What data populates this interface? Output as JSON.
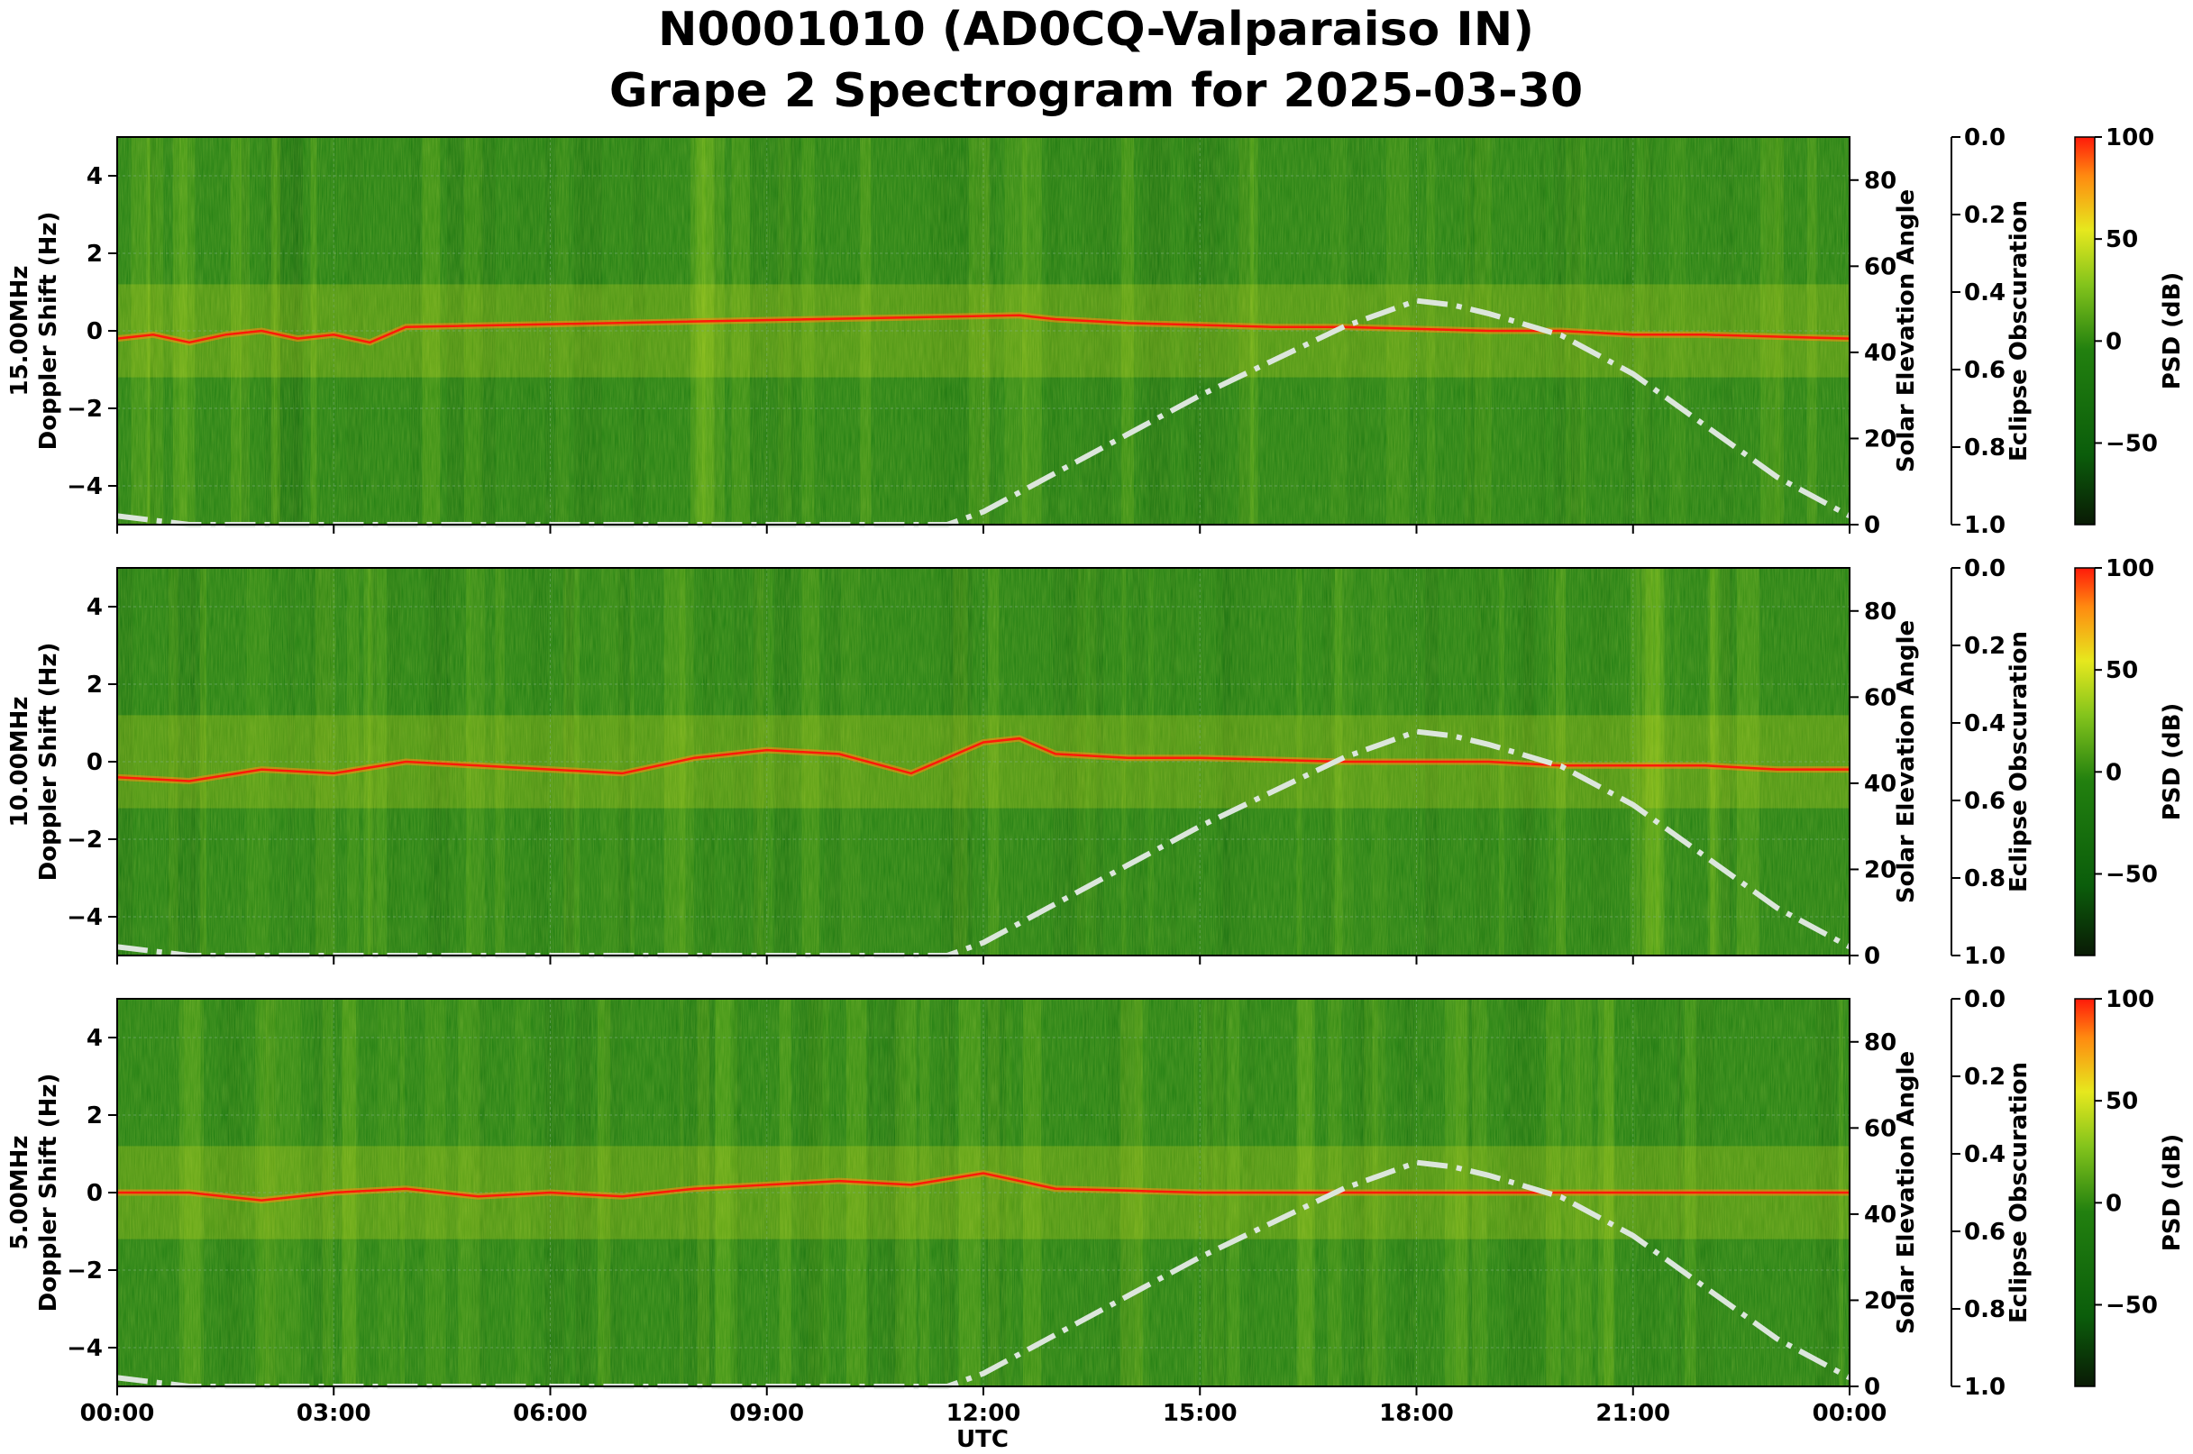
{
  "title_line1": "N0001010 (AD0CQ-Valparaiso IN)",
  "title_line2": "Grape 2 Spectrogram for 2025-03-30",
  "colors": {
    "colormap": [
      "#0a1a05",
      "#0b5d0b",
      "#22800f",
      "#84c41c",
      "#e6e81e",
      "#ff8a10",
      "#ff1a0a"
    ],
    "elevation_curve": "#dce6dc",
    "grid": "#7fb07f"
  },
  "chart_data": {
    "type": "heatmap",
    "shared": {
      "xlabel": "UTC",
      "x_ticks": [
        "00:00",
        "03:00",
        "06:00",
        "09:00",
        "12:00",
        "15:00",
        "18:00",
        "21:00",
        "00:00"
      ],
      "x_range_hours": [
        0,
        24
      ],
      "doppler_range_hz": [
        -5,
        5
      ],
      "doppler_ticks": [
        4,
        2,
        0,
        -2,
        -4
      ],
      "elevation_label": "Solar Elevation Angle",
      "elevation_range_deg": [
        0,
        90
      ],
      "elevation_ticks": [
        80,
        60,
        40,
        20,
        0
      ],
      "eclipse_label": "Eclipse Obscuration",
      "eclipse_ticks": [
        "0.0",
        "0.2",
        "0.4",
        "0.6",
        "0.8",
        "1.0"
      ],
      "colorbar_label": "PSD (dB)",
      "colorbar_ticks": [
        100,
        50,
        0,
        -50
      ],
      "colorbar_range_db": [
        -90,
        100
      ],
      "solar_elevation_curve": {
        "hours": [
          0,
          1,
          11.5,
          12,
          13,
          14,
          15,
          16,
          17,
          17.5,
          18,
          18.5,
          19,
          20,
          21,
          22,
          23,
          24
        ],
        "degrees": [
          2,
          0,
          0,
          3,
          12,
          21,
          30,
          38,
          46,
          49,
          52,
          51,
          49,
          44,
          35,
          23,
          11,
          2
        ]
      }
    },
    "panels": [
      {
        "ylabel_line1": "15.00MHz",
        "ylabel_line2": "Doppler Shift (Hz)",
        "carrier_trace": {
          "hours": [
            0,
            0.5,
            1,
            1.5,
            2,
            2.5,
            3,
            3.5,
            4,
            12.5,
            13,
            14,
            15,
            16,
            17,
            18,
            19,
            20,
            21,
            22,
            23,
            24
          ],
          "doppler_hz": [
            -0.2,
            -0.1,
            -0.3,
            -0.1,
            0,
            -0.2,
            -0.1,
            -0.3,
            0.1,
            0.4,
            0.3,
            0.2,
            0.15,
            0.1,
            0.1,
            0.05,
            0,
            0,
            -0.1,
            -0.1,
            -0.15,
            -0.2
          ]
        }
      },
      {
        "ylabel_line1": "10.00MHz",
        "ylabel_line2": "Doppler Shift (Hz)",
        "carrier_trace": {
          "hours": [
            0,
            1,
            2,
            3,
            4,
            5,
            6,
            7,
            8,
            9,
            10,
            11,
            12,
            12.5,
            13,
            14,
            15,
            16,
            17,
            18,
            19,
            20,
            21,
            22,
            23,
            24
          ],
          "doppler_hz": [
            -0.4,
            -0.5,
            -0.2,
            -0.3,
            0,
            -0.1,
            -0.2,
            -0.3,
            0.1,
            0.3,
            0.2,
            -0.3,
            0.5,
            0.6,
            0.2,
            0.1,
            0.1,
            0.05,
            0,
            0,
            0,
            -0.1,
            -0.1,
            -0.1,
            -0.2,
            -0.2
          ]
        }
      },
      {
        "ylabel_line1": "5.00MHz",
        "ylabel_line2": "Doppler Shift (Hz)",
        "carrier_trace": {
          "hours": [
            0,
            1,
            2,
            3,
            4,
            5,
            6,
            7,
            8,
            9,
            10,
            11,
            12,
            13,
            14,
            15,
            16,
            17,
            18,
            19,
            20,
            21,
            22,
            23,
            24
          ],
          "doppler_hz": [
            0,
            0,
            -0.2,
            0,
            0.1,
            -0.1,
            0,
            -0.1,
            0.1,
            0.2,
            0.3,
            0.2,
            0.5,
            0.1,
            0.05,
            0,
            0,
            0,
            0,
            0,
            0,
            0,
            0,
            0,
            0
          ]
        }
      }
    ]
  }
}
